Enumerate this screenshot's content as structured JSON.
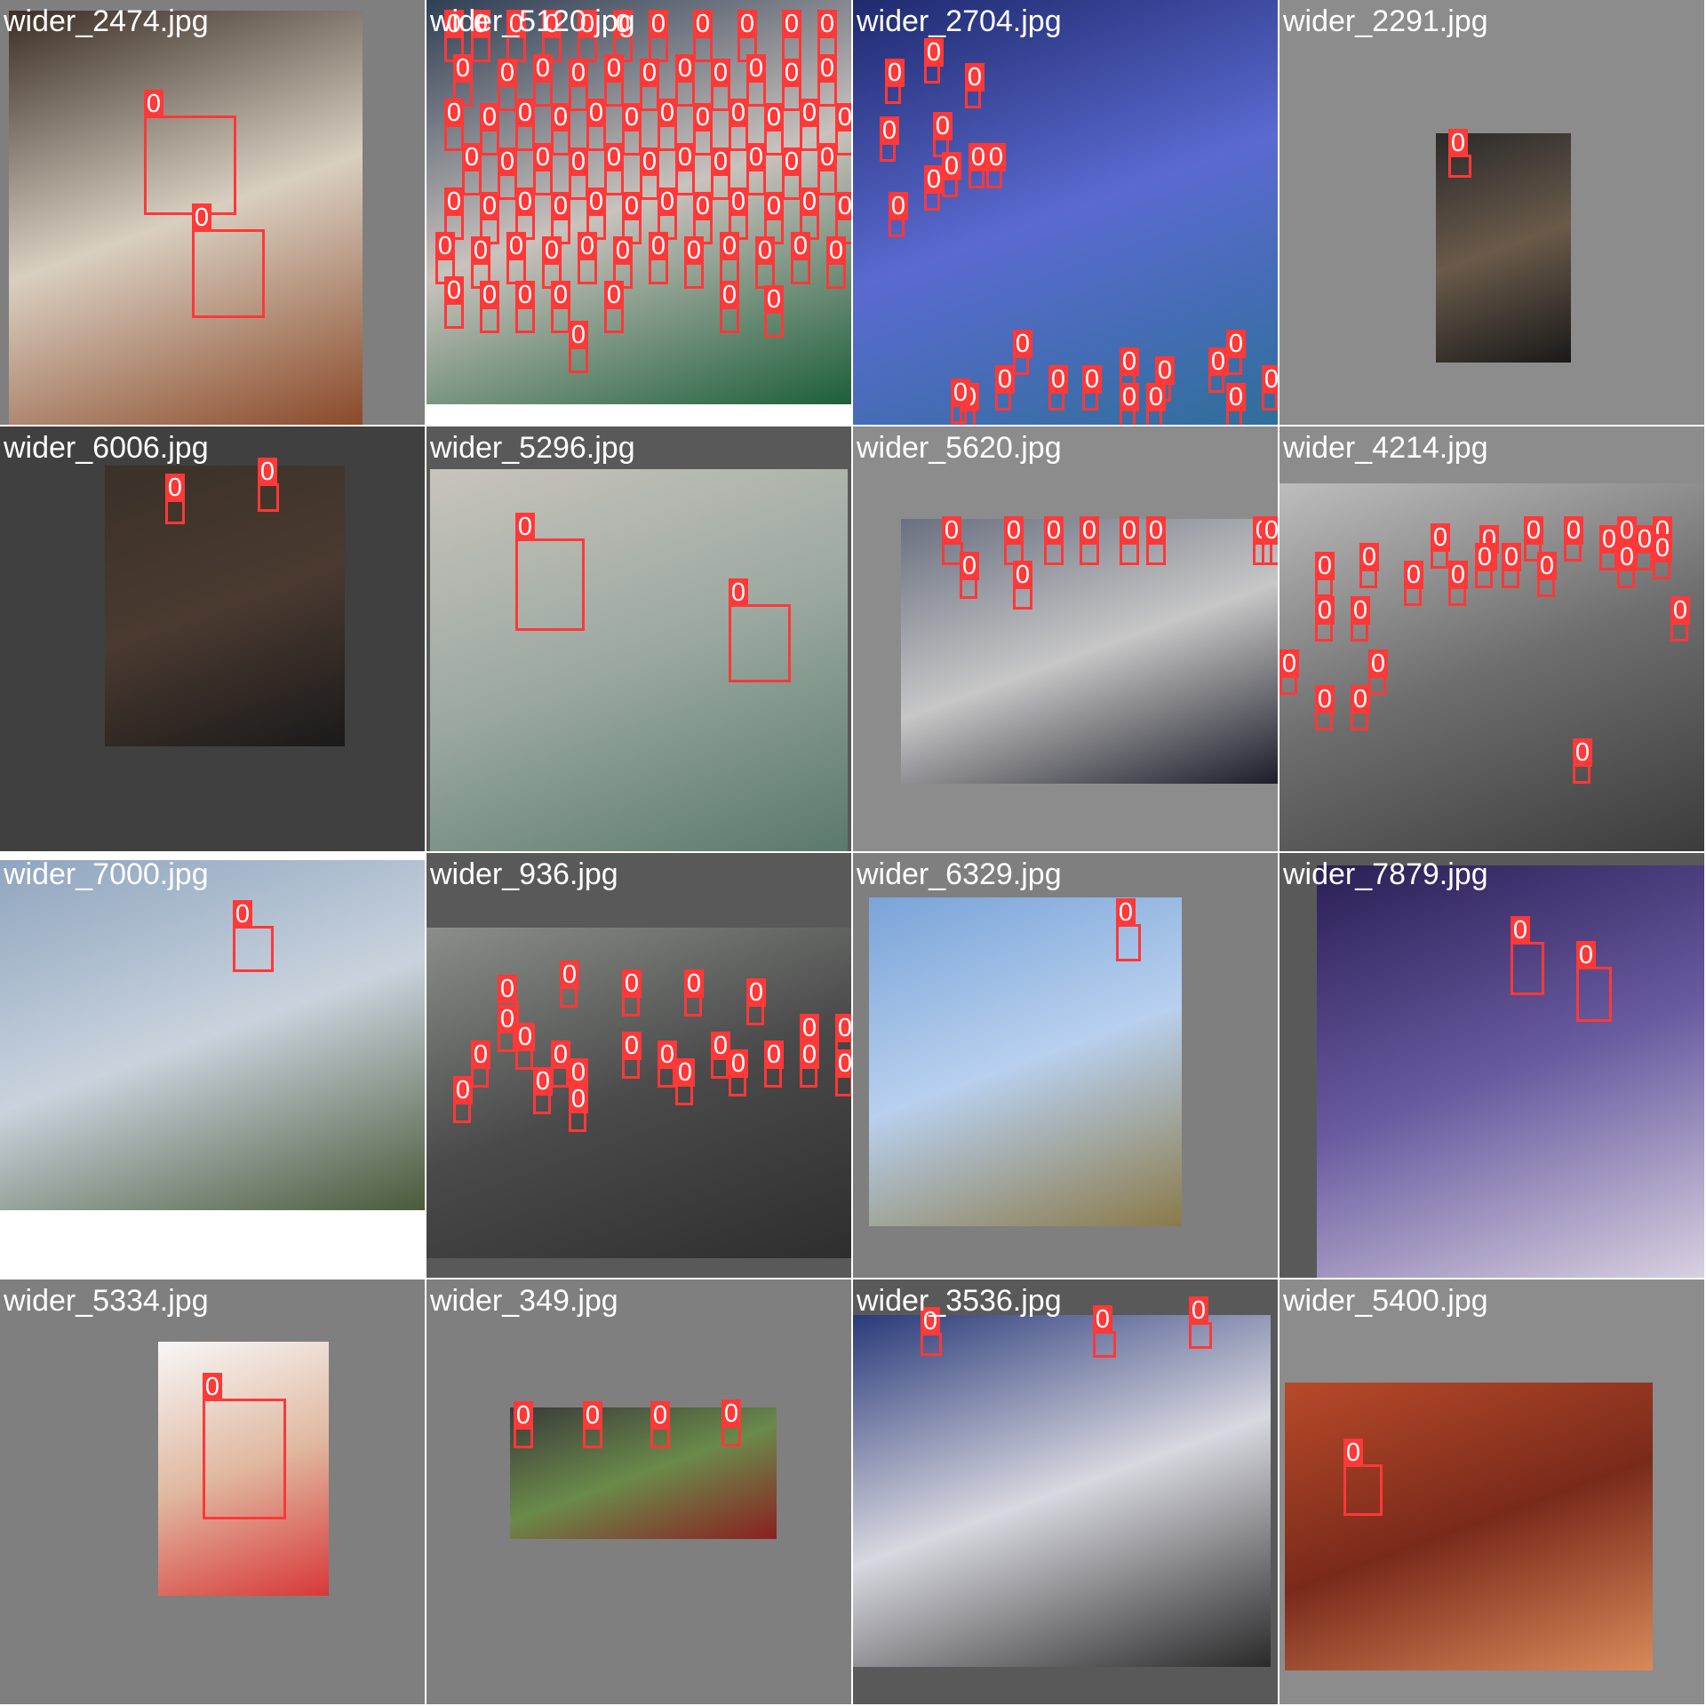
{
  "class_label": "0",
  "box_color": "#ff3838",
  "tiles": [
    {
      "file": "wider_2474.jpg",
      "bg": "#7f7f7f",
      "photo": [
        "#3a2e26",
        "#d9cfc1",
        "#8a4a2a"
      ]
    },
    {
      "file": "wider_5120.jpg",
      "bg": "#ffffff",
      "photo": [
        "#2f3f55",
        "#c9c2bd",
        "#1d5f3a"
      ]
    },
    {
      "file": "wider_2704.jpg",
      "bg": "#7f7f7f",
      "photo": [
        "#1f2a6e",
        "#5a6ad0",
        "#2f6f9a"
      ]
    },
    {
      "file": "wider_2291.jpg",
      "bg": "#8c8c8c",
      "photo": [
        "#2a2a2a",
        "#6a5a4a",
        "#1a1a1a"
      ]
    },
    {
      "file": "wider_6006.jpg",
      "bg": "#404040",
      "photo": [
        "#3a3128",
        "#4a3a30",
        "#1a1a1a"
      ]
    },
    {
      "file": "wider_5296.jpg",
      "bg": "#595959",
      "photo": [
        "#c8c4bc",
        "#9aa8a0",
        "#5a7a6a"
      ]
    },
    {
      "file": "wider_5620.jpg",
      "bg": "#8c8c8c",
      "photo": [
        "#6a7080",
        "#c7c7c7",
        "#1d1d2a"
      ]
    },
    {
      "file": "wider_4214.jpg",
      "bg": "#8c8c8c",
      "photo": [
        "#bdbdbd",
        "#6e6e6e",
        "#3c3c3c"
      ]
    },
    {
      "file": "wider_7000.jpg",
      "bg": "#ffffff",
      "photo": [
        "#8fa5bf",
        "#c9d3dd",
        "#4a5a3a"
      ]
    },
    {
      "file": "wider_936.jpg",
      "bg": "#595959",
      "photo": [
        "#8a8f8a",
        "#4a4a4a",
        "#2e2e2e"
      ]
    },
    {
      "file": "wider_6329.jpg",
      "bg": "#7f7f7f",
      "photo": [
        "#7aa4d8",
        "#b8d0ee",
        "#8a7a4a"
      ]
    },
    {
      "file": "wider_7879.jpg",
      "bg": "#595959",
      "photo": [
        "#2a1f55",
        "#6a5aa0",
        "#d8d0e0"
      ]
    },
    {
      "file": "wider_5334.jpg",
      "bg": "#7f7f7f",
      "photo": [
        "#f7f7f7",
        "#e0b8a0",
        "#d83838"
      ]
    },
    {
      "file": "wider_349.jpg",
      "bg": "#7f7f7f",
      "photo": [
        "#3a3a3a",
        "#6a8a4a",
        "#8a2020"
      ]
    },
    {
      "file": "wider_3536.jpg",
      "bg": "#595959",
      "photo": [
        "#2a3a7a",
        "#d8d8e0",
        "#2a2a2a"
      ]
    },
    {
      "file": "wider_5400.jpg",
      "bg": "#8c8c8c",
      "photo": [
        "#b84a2a",
        "#7a2a1a",
        "#d88a5a"
      ]
    }
  ]
}
